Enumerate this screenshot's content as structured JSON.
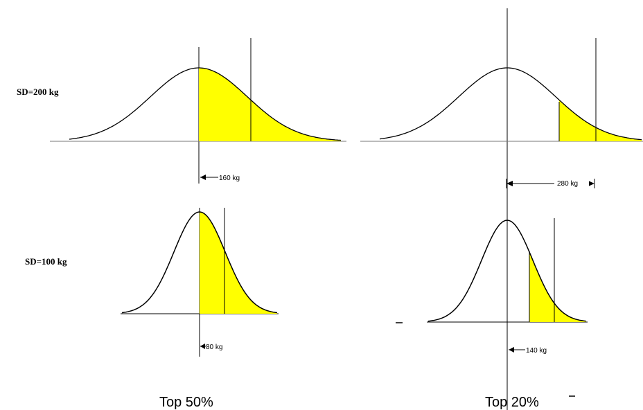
{
  "colors": {
    "fill": "#ffff00",
    "line": "#000000",
    "baseline": "#777777"
  },
  "row_labels": {
    "sd_large": "SD=200 kg",
    "sd_small": "SD=100 kg"
  },
  "column_titles": {
    "left": "Top 50%",
    "right": "Top 20%"
  },
  "selection": {
    "top50_sd200": "160 kg",
    "top20_sd200": "280 kg",
    "top50_sd100": "80 kg",
    "top20_sd100": "140 kg"
  }
}
